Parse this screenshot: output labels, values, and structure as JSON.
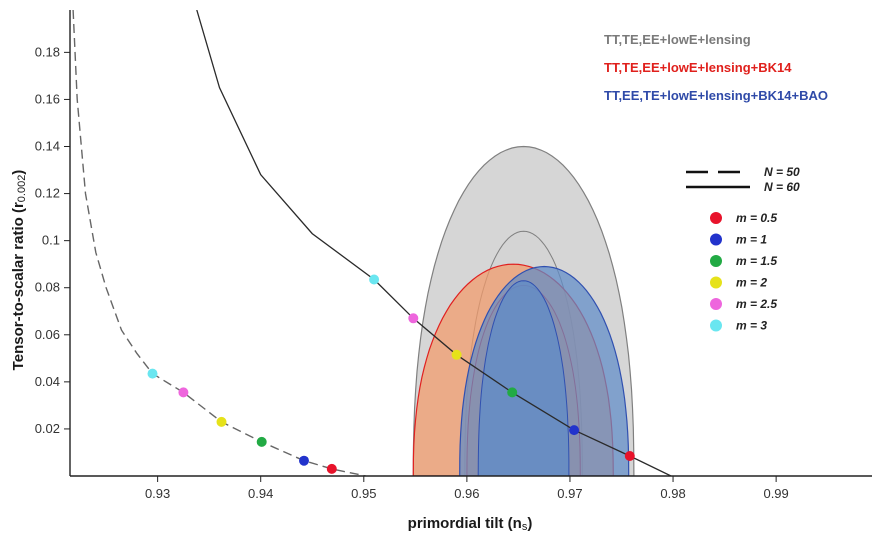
{
  "chart_data": {
    "type": "scatter",
    "xlabel_main": "primordial tilt (n",
    "xlabel_sub": "s",
    "xlabel_end": ")",
    "ylabel_main": "Tensor-to-scalar ratio (r",
    "ylabel_sub": "0.002",
    "ylabel_end": ")",
    "xlim": [
      0.9215,
      0.9993
    ],
    "ylim": [
      0.0,
      0.198
    ],
    "x_ticks": [
      {
        "value": 0.93,
        "label": "0.93"
      },
      {
        "value": 0.94,
        "label": "0.94"
      },
      {
        "value": 0.95,
        "label": "0.95"
      },
      {
        "value": 0.96,
        "label": "0.96"
      },
      {
        "value": 0.97,
        "label": "0.97"
      },
      {
        "value": 0.98,
        "label": "0.98"
      },
      {
        "value": 0.99,
        "label": "0.99"
      }
    ],
    "y_ticks": [
      {
        "value": 0.02,
        "label": "0.02"
      },
      {
        "value": 0.04,
        "label": "0.04"
      },
      {
        "value": 0.06,
        "label": "0.06"
      },
      {
        "value": 0.08,
        "label": "0.08"
      },
      {
        "value": 0.1,
        "label": "0.1"
      },
      {
        "value": 0.12,
        "label": "0.12"
      },
      {
        "value": 0.14,
        "label": "0.14"
      },
      {
        "value": 0.16,
        "label": "0.16"
      },
      {
        "value": 0.18,
        "label": "0.18"
      }
    ],
    "datasets": [
      {
        "label": "TT,TE,EE+lowE+lensing",
        "color": "#808080",
        "fill": "#d4d4d4",
        "contour_95": {
          "center": [
            0.9655,
            0.0
          ],
          "half_width": 0.0107,
          "height": 0.14
        },
        "contour_68": {
          "center": [
            0.9655,
            0.0
          ],
          "half_width": 0.0057,
          "height": 0.104
        }
      },
      {
        "label": "TT,TE,EE+lowE+lensing+BK14",
        "color": "#e02020",
        "fill": "#f39a6a",
        "contour_95": {
          "center": [
            0.9645,
            0.0
          ],
          "half_width": 0.0097,
          "height": 0.09
        },
        "contour_68": {
          "center": [
            0.9655,
            0.0
          ],
          "half_width": 0.0055,
          "height": 0.081
        }
      },
      {
        "label": "TT,EE,TE+lowE+lensing+BK14+BAO",
        "color": "#3050b0",
        "fill": "#5f8cc8",
        "contour_95": {
          "center": [
            0.9675,
            0.0
          ],
          "half_width": 0.0082,
          "height": 0.089
        },
        "contour_68": {
          "center": [
            0.9655,
            0.0
          ],
          "half_width": 0.0044,
          "height": 0.083
        }
      }
    ],
    "curves": [
      {
        "label": "N = 50",
        "style": "dashed",
        "x": [
          0.9218,
          0.9222,
          0.923,
          0.924,
          0.925,
          0.9265,
          0.928,
          0.9295,
          0.9325,
          0.9362,
          0.9401,
          0.9442,
          0.9469,
          0.9502
        ],
        "y": [
          0.198,
          0.16,
          0.12,
          0.095,
          0.08,
          0.062,
          0.052,
          0.0435,
          0.0355,
          0.023,
          0.0145,
          0.0065,
          0.003,
          0.0
        ]
      },
      {
        "label": "N = 60",
        "style": "solid",
        "x": [
          0.9338,
          0.936,
          0.94,
          0.945,
          0.951,
          0.9548,
          0.959,
          0.9644,
          0.9704,
          0.9758,
          0.9798
        ],
        "y": [
          0.198,
          0.165,
          0.128,
          0.103,
          0.0835,
          0.067,
          0.0515,
          0.0355,
          0.0195,
          0.0085,
          0.0
        ]
      }
    ],
    "points": [
      {
        "x": 0.9295,
        "y": 0.0435,
        "m": "3",
        "n": "50"
      },
      {
        "x": 0.9325,
        "y": 0.0355,
        "m": "2.5",
        "n": "50"
      },
      {
        "x": 0.9362,
        "y": 0.023,
        "m": "2",
        "n": "50"
      },
      {
        "x": 0.9401,
        "y": 0.0145,
        "m": "1.5",
        "n": "50"
      },
      {
        "x": 0.9442,
        "y": 0.0065,
        "m": "1",
        "n": "50"
      },
      {
        "x": 0.9469,
        "y": 0.003,
        "m": "0.5",
        "n": "50"
      },
      {
        "x": 0.951,
        "y": 0.0835,
        "m": "3",
        "n": "60"
      },
      {
        "x": 0.9548,
        "y": 0.067,
        "m": "2.5",
        "n": "60"
      },
      {
        "x": 0.959,
        "y": 0.0515,
        "m": "2",
        "n": "60"
      },
      {
        "x": 0.9644,
        "y": 0.0355,
        "m": "1.5",
        "n": "60"
      },
      {
        "x": 0.9704,
        "y": 0.0195,
        "m": "1",
        "n": "60"
      },
      {
        "x": 0.9758,
        "y": 0.0085,
        "m": "0.5",
        "n": "60"
      }
    ],
    "n_legend": [
      {
        "label": "N = 50",
        "style": "dashed"
      },
      {
        "label": "N = 60",
        "style": "solid"
      }
    ],
    "m_legend": [
      {
        "m": "0.5",
        "label": "m = 0.5",
        "color": "#e8132b"
      },
      {
        "m": "1",
        "label": "m = 1",
        "color": "#2233cc"
      },
      {
        "m": "1.5",
        "label": "m = 1.5",
        "color": "#22aa44"
      },
      {
        "m": "2",
        "label": "m = 2",
        "color": "#e6e21a"
      },
      {
        "m": "2.5",
        "label": "m = 2.5",
        "color": "#ee66dd"
      },
      {
        "m": "3",
        "label": "m = 3",
        "color": "#6ae6f0"
      }
    ],
    "legend_position": "top-right",
    "grid": false
  }
}
